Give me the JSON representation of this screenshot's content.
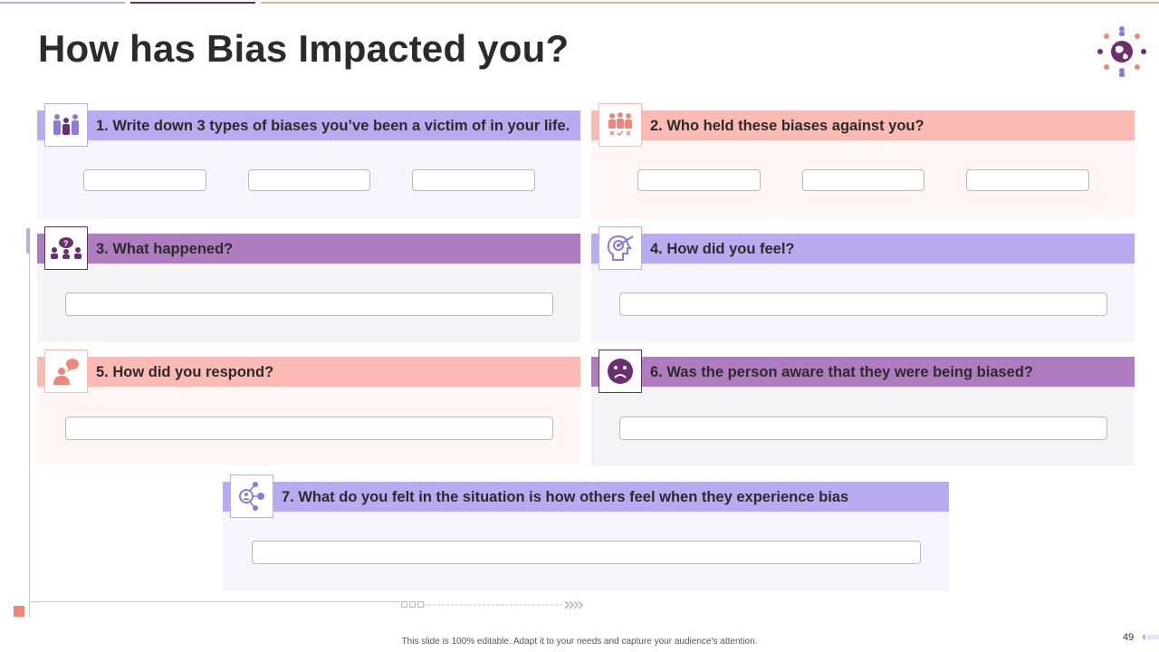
{
  "title": "How has Bias Impacted you?",
  "colors": {
    "lavender": "#b8abf0",
    "lavender_bg": "#f6f5fd",
    "salmon": "#fbbab3",
    "salmon_bg": "#fff6f5",
    "purple": "#b07cc0",
    "purple_bg": "#f4f3f6",
    "icon_dark": "#6b2f6f",
    "icon_lavender": "#8b78e0",
    "icon_salmon": "#f0867a"
  },
  "questions": [
    {
      "number": 1,
      "label": "1. Write down 3 types of biases you’ve been a victim of in your life.",
      "icon": "team-icon",
      "inputs": 3
    },
    {
      "number": 2,
      "label": "2. Who held these biases against you?",
      "icon": "group-rejection-icon",
      "inputs": 3
    },
    {
      "number": 3,
      "label": "3. What happened?",
      "icon": "discussion-icon",
      "inputs": 1
    },
    {
      "number": 4,
      "label": "4. How did you feel?",
      "icon": "head-target-icon",
      "inputs": 1
    },
    {
      "number": 5,
      "label": "5. How did you respond?",
      "icon": "person-speech-icon",
      "inputs": 1
    },
    {
      "number": 6,
      "label": "6. Was the person aware that they were being biased?",
      "icon": "sad-face-icon",
      "inputs": 1
    },
    {
      "number": 7,
      "label": "7. What do you felt in the situation is how others feel when they experience bias",
      "icon": "network-people-icon",
      "inputs": 1
    }
  ],
  "footer": "This slide is 100% editable. Adapt it to your needs and capture your audience’s attention.",
  "page_number": "49",
  "logo_icon": "globe-people-icon"
}
